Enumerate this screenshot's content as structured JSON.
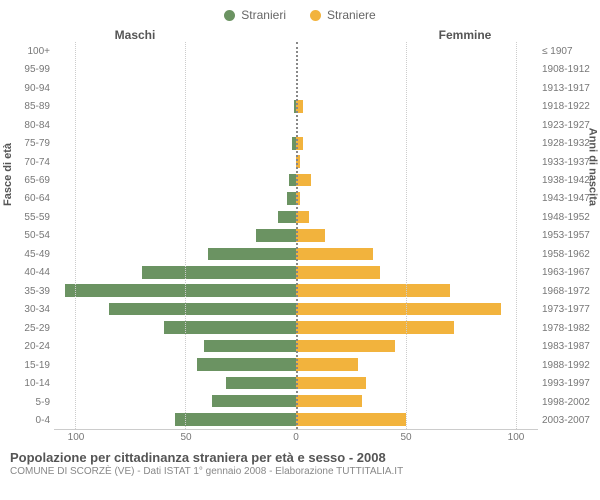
{
  "legend": {
    "male": {
      "label": "Stranieri",
      "color": "#6b9362"
    },
    "female": {
      "label": "Straniere",
      "color": "#f2b33d"
    }
  },
  "headers": {
    "left": "Maschi",
    "right": "Femmine"
  },
  "axis_labels": {
    "left": "Fasce di età",
    "right": "Anni di nascita"
  },
  "x_max": 110,
  "x_ticks": [
    100,
    50,
    0,
    50,
    100
  ],
  "footer": {
    "title": "Popolazione per cittadinanza straniera per età e sesso - 2008",
    "sub": "COMUNE DI SCORZÈ (VE) - Dati ISTAT 1° gennaio 2008 - Elaborazione TUTTITALIA.IT"
  },
  "grid_color": "#cccccc",
  "rows": [
    {
      "age": "100+",
      "year": "≤ 1907",
      "m": 0,
      "f": 0
    },
    {
      "age": "95-99",
      "year": "1908-1912",
      "m": 0,
      "f": 0
    },
    {
      "age": "90-94",
      "year": "1913-1917",
      "m": 0,
      "f": 0
    },
    {
      "age": "85-89",
      "year": "1918-1922",
      "m": 1,
      "f": 3
    },
    {
      "age": "80-84",
      "year": "1923-1927",
      "m": 0,
      "f": 0
    },
    {
      "age": "75-79",
      "year": "1928-1932",
      "m": 2,
      "f": 3
    },
    {
      "age": "70-74",
      "year": "1933-1937",
      "m": 0,
      "f": 2
    },
    {
      "age": "65-69",
      "year": "1938-1942",
      "m": 3,
      "f": 7
    },
    {
      "age": "60-64",
      "year": "1943-1947",
      "m": 4,
      "f": 2
    },
    {
      "age": "55-59",
      "year": "1948-1952",
      "m": 8,
      "f": 6
    },
    {
      "age": "50-54",
      "year": "1953-1957",
      "m": 18,
      "f": 13
    },
    {
      "age": "45-49",
      "year": "1958-1962",
      "m": 40,
      "f": 35
    },
    {
      "age": "40-44",
      "year": "1963-1967",
      "m": 70,
      "f": 38
    },
    {
      "age": "35-39",
      "year": "1968-1972",
      "m": 105,
      "f": 70
    },
    {
      "age": "30-34",
      "year": "1973-1977",
      "m": 85,
      "f": 93
    },
    {
      "age": "25-29",
      "year": "1978-1982",
      "m": 60,
      "f": 72
    },
    {
      "age": "20-24",
      "year": "1983-1987",
      "m": 42,
      "f": 45
    },
    {
      "age": "15-19",
      "year": "1988-1992",
      "m": 45,
      "f": 28
    },
    {
      "age": "10-14",
      "year": "1993-1997",
      "m": 32,
      "f": 32
    },
    {
      "age": "5-9",
      "year": "1998-2002",
      "m": 38,
      "f": 30
    },
    {
      "age": "0-4",
      "year": "2003-2007",
      "m": 55,
      "f": 50
    }
  ]
}
